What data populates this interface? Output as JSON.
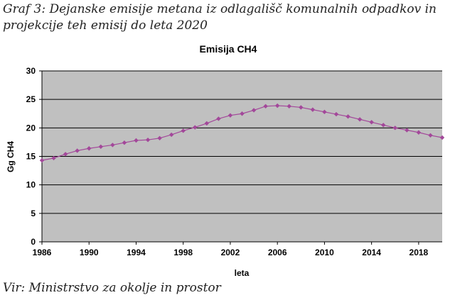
{
  "caption": "Graf 3: Dejanske emisije metana iz odlagališč komunalnih odpadkov in projekcije teh emisij do leta 2020",
  "source": "Vir: Ministrstvo za okolje in prostor",
  "colors": {
    "plot_background": "#c0c0c0",
    "series": "#a3489a",
    "grid": "#000000"
  },
  "chart_data": {
    "type": "line",
    "title": "Emisija CH4",
    "xlabel": "leta",
    "ylabel": "Gg CH4",
    "ylim": [
      0,
      30
    ],
    "xlim": [
      1986,
      2020
    ],
    "yticks": [
      0,
      5,
      10,
      15,
      20,
      25,
      30
    ],
    "xticks": [
      1986,
      1990,
      1994,
      1998,
      2002,
      2006,
      2010,
      2014,
      2018
    ],
    "grid": true,
    "series": [
      {
        "x": [
          1986,
          1987,
          1988,
          1989,
          1990,
          1991,
          1992,
          1993,
          1994,
          1995,
          1996,
          1997,
          1998,
          1999,
          2000,
          2001,
          2002,
          2003,
          2004,
          2005,
          2006,
          2007,
          2008,
          2009,
          2010,
          2011,
          2012,
          2013,
          2014,
          2015,
          2016,
          2017,
          2018,
          2019,
          2020
        ],
        "values": [
          14.3,
          14.7,
          15.4,
          16.0,
          16.4,
          16.7,
          17.0,
          17.4,
          17.8,
          17.9,
          18.2,
          18.8,
          19.5,
          20.1,
          20.8,
          21.6,
          22.2,
          22.5,
          23.1,
          23.8,
          23.9,
          23.8,
          23.6,
          23.2,
          22.8,
          22.4,
          22.0,
          21.5,
          21.0,
          20.5,
          20.0,
          19.6,
          19.2,
          18.7,
          18.3
        ]
      }
    ]
  }
}
